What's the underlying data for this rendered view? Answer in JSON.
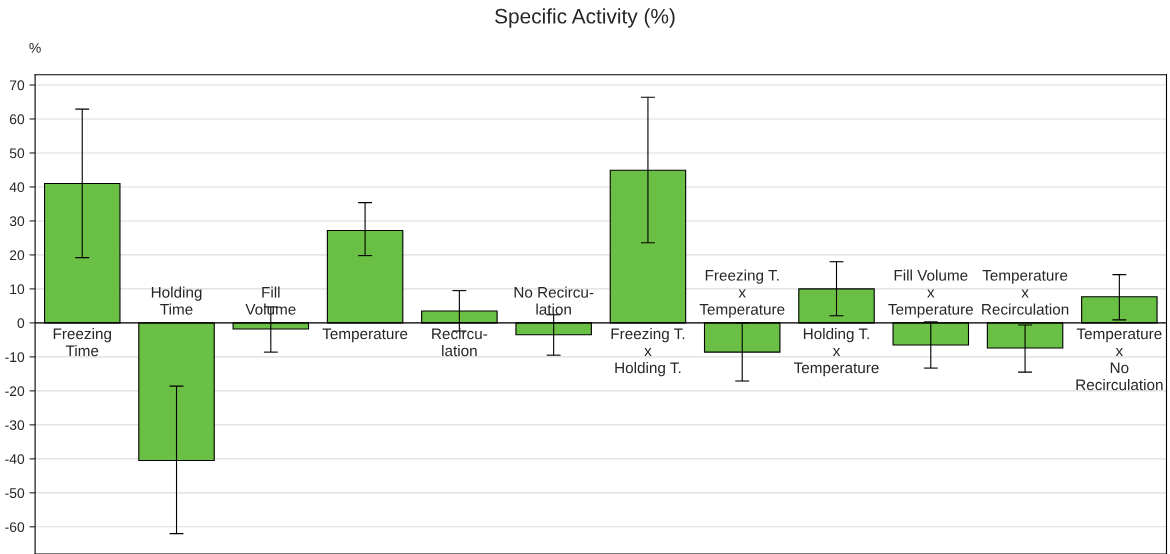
{
  "chart_data": {
    "type": "bar",
    "title": "Specific Activity (%)",
    "ylabel": "%",
    "categories": [
      "Freezing\nTime",
      "Holding\nTime",
      "Fill\nVolume",
      "Temperature",
      "Recircu-\nlation",
      "No Recircu-\nlation",
      "Freezing T.\nx\nHolding T.",
      "Freezing T.\nx\nTemperature",
      "Holding T.\nx\nTemperature",
      "Fill Volume\nx\nTemperature",
      "Temperature\nx\nRecirculation",
      "Temperature\nx\nNo\nRecirculation"
    ],
    "values": [
      41,
      -40.5,
      -1.8,
      27.2,
      3.5,
      -3.5,
      44.9,
      -8.6,
      10,
      -6.5,
      -7.4,
      7.7
    ],
    "errors": [
      [
        19.2,
        62.9
      ],
      [
        -62,
        -18.6
      ],
      [
        -8.6,
        4.7
      ],
      [
        19.8,
        35.4
      ],
      [
        -2.4,
        9.5
      ],
      [
        -9.5,
        2.4
      ],
      [
        23.6,
        66.4
      ],
      [
        -17.1,
        0
      ],
      [
        2.1,
        18
      ],
      [
        -13.3,
        0.3
      ],
      [
        -14.5,
        -0.6
      ],
      [
        0.9,
        14.2
      ]
    ],
    "color": "#6abf45",
    "ylim": [
      -68,
      73
    ],
    "yticks": [
      -60,
      -50,
      -40,
      -30,
      -20,
      -10,
      0,
      10,
      20,
      30,
      40,
      50,
      60,
      70
    ],
    "grid": "y",
    "tick_labels": "y"
  }
}
